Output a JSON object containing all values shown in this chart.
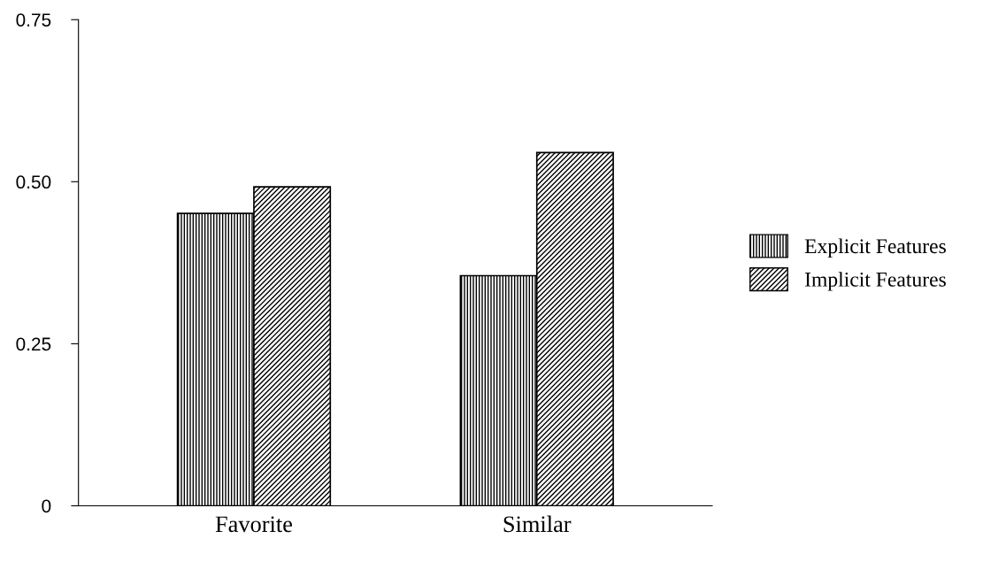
{
  "chart_data": {
    "type": "bar",
    "categories": [
      "Favorite",
      "Similar"
    ],
    "series": [
      {
        "name": "Explicit Features",
        "color": "#000000",
        "values": [
          0.451,
          0.355
        ]
      },
      {
        "name": "Implicit Features",
        "color": "#000000",
        "values": [
          0.492,
          0.545
        ]
      }
    ],
    "ylim": [
      0,
      0.75
    ],
    "yticks": [
      0,
      {
        "value": 0.25,
        "label": "0.25"
      },
      {
        "value": 0.5,
        "label": "0.50"
      },
      {
        "value": 0.75,
        "label": "0.75"
      }
    ],
    "grid": false,
    "legend": "right"
  }
}
